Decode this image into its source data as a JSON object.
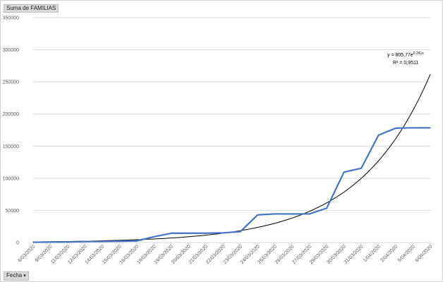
{
  "pivot": {
    "values_field": "Suma de FAMILIAS",
    "axis_field": "Fecha",
    "axis_field_arrow": "▾"
  },
  "colors": {
    "series": "#4472c4",
    "trendline": "#000000",
    "grid": "#d9d9d9",
    "tick_text": "#595959"
  },
  "chart_data": {
    "type": "line",
    "title": "",
    "xlabel": "",
    "ylabel": "",
    "ylim": [
      0,
      350000
    ],
    "yticks": [
      0,
      50000,
      100000,
      150000,
      200000,
      250000,
      300000,
      350000
    ],
    "grid": true,
    "categories": [
      "6/03/2020",
      "9/03/2020",
      "11/03/2020",
      "12/03/2020",
      "14/03/2020",
      "15/03/2020",
      "16/03/2020",
      "18/03/2020",
      "19/03/2020",
      "20/03/2020",
      "21/03/2020",
      "22/03/2020",
      "23/03/2020",
      "24/03/2020",
      "25/03/2020",
      "26/03/2020",
      "27/03/2020",
      "29/03/2020",
      "30/03/2020",
      "31/03/2020",
      "1/04/2020",
      "2/04/2020",
      "5/04/2020",
      "6/04/2020"
    ],
    "series": [
      {
        "values": [
          500,
          600,
          800,
          1500,
          1700,
          2000,
          2500,
          9000,
          14500,
          14500,
          14500,
          15000,
          17000,
          43000,
          44500,
          44500,
          44500,
          53500,
          109500,
          115500,
          167000,
          178000,
          178500,
          178500
        ]
      }
    ],
    "trendline": {
      "type": "exponential",
      "a": 805.77,
      "b": 0.241,
      "equation_text": "y = 805,77e",
      "equation_exp": "0,241x",
      "r2_text": "R² = 0,9511"
    }
  }
}
